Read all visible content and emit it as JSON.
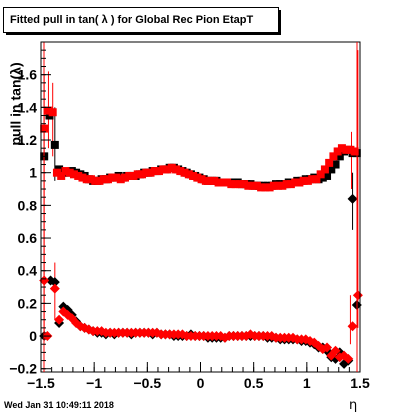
{
  "title": "Fitted pull in tan( λ ) for Global Rec Pion EtapT",
  "ylabel": "pull in tan(λ)",
  "xlabel": "η",
  "timestamp": "Wed Jan 31 10:49:11 2018",
  "colors": {
    "red": "#ff0000",
    "black": "#000000",
    "axis": "#000000"
  },
  "chart_data": {
    "type": "scatter",
    "title": "Fitted pull in tan( λ ) for Global Rec Pion EtapT",
    "xlabel": "η",
    "ylabel": "pull in tan(λ)",
    "xlim": [
      -1.5,
      1.5
    ],
    "ylim": [
      -0.22,
      1.8
    ],
    "xticks": [
      -1.5,
      -1,
      -0.5,
      0,
      0.5,
      1,
      1.5
    ],
    "xtick_labels": [
      "−1.5",
      "−1",
      "−0.5",
      "0",
      "0.5",
      "1",
      "1.5"
    ],
    "yticks": [
      -0.2,
      0,
      0.2,
      0.4,
      0.6,
      0.8,
      1,
      1.2,
      1.4,
      1.6
    ],
    "ytick_labels": [
      "−0.2",
      "0",
      "0.2",
      "0.4",
      "0.6",
      "0.8",
      "1",
      "1.2",
      "1.4",
      "1.6"
    ],
    "grid": false,
    "series": [
      {
        "color": "#000000",
        "marker": "square",
        "x": [
          -1.47,
          -1.42,
          -1.37,
          -1.33,
          -1.29,
          -1.25,
          -1.21,
          -1.17,
          -1.13,
          -1.09,
          -1.05,
          -1.01,
          -0.97,
          -0.93,
          -0.89,
          -0.85,
          -0.81,
          -0.77,
          -0.73,
          -0.69,
          -0.65,
          -0.61,
          -0.57,
          -0.53,
          -0.49,
          -0.45,
          -0.41,
          -0.37,
          -0.33,
          -0.29,
          -0.25,
          -0.21,
          -0.17,
          -0.13,
          -0.09,
          -0.05,
          -0.01,
          0.03,
          0.07,
          0.11,
          0.15,
          0.19,
          0.23,
          0.27,
          0.31,
          0.35,
          0.39,
          0.43,
          0.47,
          0.51,
          0.55,
          0.59,
          0.63,
          0.67,
          0.71,
          0.75,
          0.79,
          0.83,
          0.87,
          0.91,
          0.95,
          0.99,
          1.03,
          1.07,
          1.11,
          1.15,
          1.19,
          1.23,
          1.27,
          1.31,
          1.35,
          1.39,
          1.43,
          1.47
        ],
        "y": [
          1.1,
          1.35,
          1.17,
          1.02,
          1.0,
          1.0,
          1.01,
          1.0,
          0.99,
          0.98,
          0.96,
          0.95,
          0.95,
          0.96,
          0.96,
          0.97,
          0.97,
          0.98,
          0.97,
          0.98,
          0.98,
          0.98,
          0.99,
          1.0,
          1.0,
          1.01,
          1.01,
          1.02,
          1.02,
          1.03,
          1.03,
          1.02,
          1.01,
          1.0,
          0.99,
          0.98,
          0.97,
          0.96,
          0.95,
          0.95,
          0.95,
          0.94,
          0.94,
          0.94,
          0.94,
          0.94,
          0.93,
          0.93,
          0.93,
          0.92,
          0.92,
          0.92,
          0.92,
          0.92,
          0.93,
          0.93,
          0.93,
          0.94,
          0.94,
          0.95,
          0.95,
          0.96,
          0.96,
          0.97,
          0.96,
          0.97,
          0.98,
          1.02,
          1.05,
          1.1,
          1.13,
          1.14,
          1.12,
          1.12
        ]
      },
      {
        "color": "#ff0000",
        "marker": "square",
        "x": [
          -1.47,
          -1.43,
          -1.39,
          -1.35,
          -1.31,
          -1.27,
          -1.23,
          -1.19,
          -1.15,
          -1.11,
          -1.07,
          -1.03,
          -0.99,
          -0.95,
          -0.91,
          -0.87,
          -0.83,
          -0.79,
          -0.75,
          -0.71,
          -0.67,
          -0.63,
          -0.59,
          -0.55,
          -0.51,
          -0.47,
          -0.43,
          -0.39,
          -0.35,
          -0.31,
          -0.27,
          -0.23,
          -0.19,
          -0.15,
          -0.11,
          -0.07,
          -0.03,
          0.01,
          0.05,
          0.09,
          0.13,
          0.17,
          0.21,
          0.25,
          0.29,
          0.33,
          0.37,
          0.41,
          0.45,
          0.49,
          0.53,
          0.57,
          0.61,
          0.65,
          0.69,
          0.73,
          0.77,
          0.81,
          0.85,
          0.89,
          0.93,
          0.97,
          1.01,
          1.05,
          1.09,
          1.13,
          1.17,
          1.21,
          1.25,
          1.29,
          1.33,
          1.37,
          1.41,
          1.45
        ],
        "y": [
          1.27,
          1.38,
          1.37,
          1.0,
          0.98,
          1.01,
          1.0,
          0.99,
          0.98,
          0.97,
          0.96,
          0.96,
          0.95,
          0.95,
          0.96,
          0.96,
          0.97,
          0.97,
          0.96,
          0.97,
          0.98,
          0.98,
          0.99,
          0.99,
          1.0,
          1.0,
          1.01,
          1.01,
          1.02,
          1.02,
          1.03,
          1.02,
          1.01,
          1.0,
          0.99,
          0.98,
          0.97,
          0.96,
          0.95,
          0.95,
          0.95,
          0.94,
          0.94,
          0.94,
          0.93,
          0.93,
          0.93,
          0.93,
          0.92,
          0.92,
          0.92,
          0.91,
          0.91,
          0.91,
          0.92,
          0.92,
          0.92,
          0.93,
          0.93,
          0.94,
          0.94,
          0.95,
          0.95,
          0.96,
          0.96,
          0.99,
          1.02,
          1.06,
          1.1,
          1.13,
          1.15,
          1.14,
          1.14,
          1.13
        ]
      },
      {
        "color": "#000000",
        "marker": "diamond",
        "x": [
          -1.47,
          -1.41,
          -1.37,
          -1.33,
          -1.29,
          -1.25,
          -1.21,
          -1.17,
          -1.13,
          -1.09,
          -1.05,
          -1.01,
          -0.97,
          -0.93,
          -0.89,
          -0.85,
          -0.81,
          -0.77,
          -0.73,
          -0.69,
          -0.65,
          -0.61,
          -0.57,
          -0.53,
          -0.49,
          -0.45,
          -0.41,
          -0.37,
          -0.33,
          -0.29,
          -0.25,
          -0.21,
          -0.17,
          -0.13,
          -0.09,
          -0.05,
          -0.01,
          0.03,
          0.07,
          0.11,
          0.15,
          0.19,
          0.23,
          0.27,
          0.31,
          0.35,
          0.39,
          0.43,
          0.47,
          0.51,
          0.55,
          0.59,
          0.63,
          0.67,
          0.71,
          0.75,
          0.79,
          0.83,
          0.87,
          0.91,
          0.95,
          0.99,
          1.03,
          1.07,
          1.11,
          1.15,
          1.19,
          1.23,
          1.27,
          1.31,
          1.35,
          1.39,
          1.43,
          1.47
        ],
        "y": [
          0.0,
          0.34,
          0.33,
          0.08,
          0.18,
          0.16,
          0.13,
          0.09,
          0.06,
          0.05,
          0.04,
          0.03,
          0.02,
          0.02,
          0.01,
          0.02,
          0.01,
          0.02,
          0.02,
          0.02,
          0.01,
          0.02,
          0.02,
          0.02,
          0.02,
          0.01,
          0.02,
          0.01,
          0.01,
          0.01,
          0.0,
          0.0,
          0.0,
          0.0,
          0.01,
          0.0,
          0.0,
          0.0,
          -0.01,
          -0.01,
          -0.01,
          -0.01,
          -0.01,
          0.0,
          0.0,
          0.0,
          0.0,
          0.0,
          0.0,
          0.0,
          0.0,
          0.0,
          -0.01,
          -0.01,
          -0.01,
          -0.02,
          -0.02,
          -0.02,
          -0.02,
          -0.02,
          -0.03,
          -0.03,
          -0.04,
          -0.05,
          -0.07,
          -0.07,
          -0.09,
          -0.13,
          -0.14,
          -0.1,
          -0.17,
          -0.15,
          0.84,
          0.19
        ]
      },
      {
        "color": "#ff0000",
        "marker": "diamond",
        "x": [
          -1.47,
          -1.44,
          -1.37,
          -1.33,
          -1.29,
          -1.25,
          -1.21,
          -1.17,
          -1.13,
          -1.09,
          -1.05,
          -1.01,
          -0.97,
          -0.93,
          -0.89,
          -0.85,
          -0.81,
          -0.77,
          -0.73,
          -0.69,
          -0.65,
          -0.61,
          -0.57,
          -0.53,
          -0.49,
          -0.45,
          -0.41,
          -0.37,
          -0.33,
          -0.29,
          -0.25,
          -0.21,
          -0.17,
          -0.13,
          -0.09,
          -0.05,
          -0.01,
          0.03,
          0.07,
          0.11,
          0.15,
          0.19,
          0.23,
          0.27,
          0.31,
          0.35,
          0.39,
          0.43,
          0.47,
          0.51,
          0.55,
          0.59,
          0.63,
          0.67,
          0.71,
          0.75,
          0.79,
          0.83,
          0.87,
          0.91,
          0.95,
          0.99,
          1.03,
          1.07,
          1.11,
          1.15,
          1.19,
          1.23,
          1.27,
          1.31,
          1.35,
          1.39,
          1.43,
          1.48
        ],
        "y": [
          0.34,
          0.0,
          0.29,
          0.1,
          0.15,
          0.13,
          0.11,
          0.08,
          0.06,
          0.05,
          0.04,
          0.03,
          0.03,
          0.03,
          0.02,
          0.02,
          0.02,
          0.02,
          0.02,
          0.02,
          0.02,
          0.02,
          0.02,
          0.02,
          0.02,
          0.02,
          0.02,
          0.01,
          0.01,
          0.01,
          0.01,
          0.01,
          0.01,
          0.0,
          0.0,
          0.0,
          0.0,
          0.0,
          0.0,
          0.0,
          0.0,
          0.0,
          -0.01,
          0.0,
          0.0,
          0.0,
          0.0,
          0.0,
          0.01,
          0.0,
          0.0,
          0.0,
          0.0,
          0.0,
          -0.01,
          -0.01,
          -0.01,
          -0.01,
          -0.01,
          -0.02,
          -0.02,
          -0.02,
          -0.03,
          -0.04,
          -0.06,
          -0.08,
          -0.07,
          -0.12,
          -0.09,
          -0.13,
          -0.12,
          -0.14,
          0.06,
          0.25
        ]
      }
    ],
    "error_bars": [
      {
        "x": -1.47,
        "y": 1.27,
        "lo": 0.88,
        "hi": 1.6,
        "color": "#ff0000"
      },
      {
        "x": -1.43,
        "y": 1.38,
        "lo": 1.15,
        "hi": 1.62,
        "color": "#ff0000"
      },
      {
        "x": -1.39,
        "y": 1.37,
        "lo": 1.1,
        "hi": 1.55,
        "color": "#ff0000"
      },
      {
        "x": -1.37,
        "y": 1.17,
        "lo": 0.95,
        "hi": 1.4,
        "color": "#000000"
      },
      {
        "x": -1.47,
        "y": 0.34,
        "lo": 0.0,
        "hi": 0.88,
        "color": "#ff0000"
      },
      {
        "x": -1.37,
        "y": 0.29,
        "lo": 0.1,
        "hi": 0.45,
        "color": "#ff0000"
      },
      {
        "x": 1.43,
        "y": 0.84,
        "lo": 0.65,
        "hi": 1.0,
        "color": "#000000"
      },
      {
        "x": 1.42,
        "y": 1.12,
        "lo": 0.9,
        "hi": 1.25,
        "color": "#ff0000"
      },
      {
        "x": 1.41,
        "y": 0.06,
        "lo": -0.05,
        "hi": 0.25,
        "color": "#ff0000"
      },
      {
        "x": 1.48,
        "y": 0.25,
        "lo": 0.05,
        "hi": 1.75,
        "color": "#ff0000"
      }
    ]
  }
}
